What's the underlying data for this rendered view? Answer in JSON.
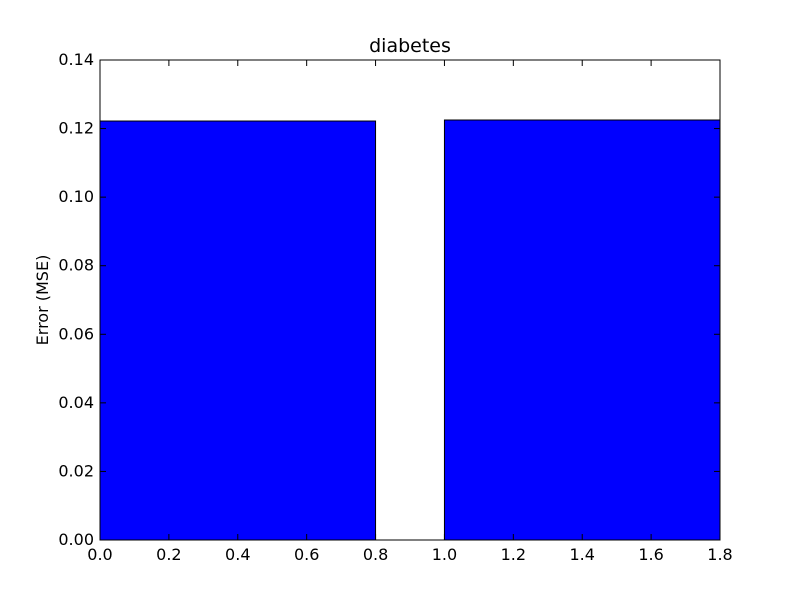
{
  "chart_data": {
    "type": "bar",
    "title": "diabetes",
    "xlabel": "",
    "ylabel": "Error (MSE)",
    "xlim": [
      0.0,
      1.8
    ],
    "ylim": [
      0.0,
      0.14
    ],
    "grid": false,
    "bar_color": "#0000ff",
    "bars": [
      {
        "x_start": 0.0,
        "x_end": 0.8,
        "value": 0.1222
      },
      {
        "x_start": 1.0,
        "x_end": 1.8,
        "value": 0.1225
      }
    ],
    "x_ticks": [
      {
        "value": 0.0,
        "label": "0.0"
      },
      {
        "value": 0.2,
        "label": "0.2"
      },
      {
        "value": 0.4,
        "label": "0.4"
      },
      {
        "value": 0.6,
        "label": "0.6"
      },
      {
        "value": 0.8,
        "label": "0.8"
      },
      {
        "value": 1.0,
        "label": "1.0"
      },
      {
        "value": 1.2,
        "label": "1.2"
      },
      {
        "value": 1.4,
        "label": "1.4"
      },
      {
        "value": 1.6,
        "label": "1.6"
      },
      {
        "value": 1.8,
        "label": "1.8"
      }
    ],
    "y_ticks": [
      {
        "value": 0.0,
        "label": "0.00"
      },
      {
        "value": 0.02,
        "label": "0.02"
      },
      {
        "value": 0.04,
        "label": "0.04"
      },
      {
        "value": 0.06,
        "label": "0.06"
      },
      {
        "value": 0.08,
        "label": "0.08"
      },
      {
        "value": 0.1,
        "label": "0.10"
      },
      {
        "value": 0.12,
        "label": "0.12"
      },
      {
        "value": 0.14,
        "label": "0.14"
      }
    ]
  }
}
